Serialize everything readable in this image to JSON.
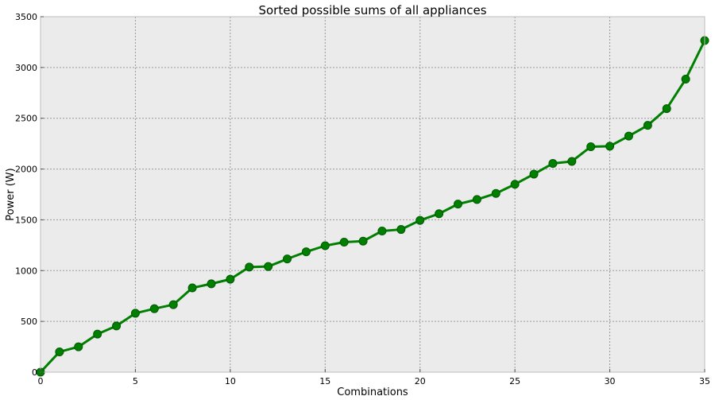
{
  "chart_data": {
    "type": "line",
    "title": "Sorted possible sums of all appliances",
    "xlabel": "Combinations",
    "ylabel": "Power (W)",
    "xlim": [
      0,
      35
    ],
    "ylim": [
      0,
      3500
    ],
    "xticks": [
      0,
      5,
      10,
      15,
      20,
      25,
      30,
      35
    ],
    "yticks": [
      0,
      500,
      1000,
      1500,
      2000,
      2500,
      3000,
      3500
    ],
    "grid": true,
    "legend": "none",
    "series": [
      {
        "color": "#007f00",
        "marker": "circle",
        "x": [
          0,
          1,
          2,
          3,
          4,
          5,
          6,
          7,
          8,
          9,
          10,
          11,
          12,
          13,
          14,
          15,
          16,
          17,
          18,
          19,
          20,
          21,
          22,
          23,
          24,
          25,
          26,
          27,
          28,
          29,
          30,
          31,
          32,
          33,
          34,
          35
        ],
        "values": [
          0,
          200,
          250,
          375,
          455,
          580,
          625,
          665,
          830,
          870,
          915,
          1035,
          1040,
          1115,
          1185,
          1245,
          1280,
          1290,
          1390,
          1405,
          1495,
          1560,
          1655,
          1700,
          1760,
          1850,
          1950,
          2055,
          2075,
          2220,
          2225,
          2325,
          2430,
          2595,
          2885,
          3265
        ]
      }
    ],
    "colors": {
      "plot_background": "#ebebeb",
      "grid": "#999999",
      "line": "#007f00",
      "marker_edge": "#005a00"
    }
  }
}
